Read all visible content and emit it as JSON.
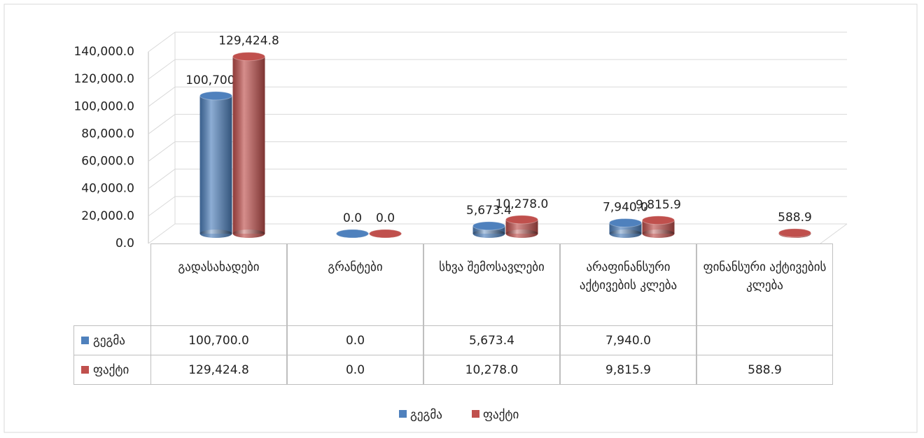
{
  "chart_data": {
    "type": "bar3d",
    "categories": [
      "გადასახადები",
      "გრანტები",
      "სხვა შემოსავლები",
      "არაფინანსური აქტივების კლება",
      "ფინანსური აქტივების კლება"
    ],
    "series": [
      {
        "name": "გეგმა",
        "color": "#4f81bd",
        "values": [
          100700,
          0,
          5673.4,
          7940,
          null
        ],
        "value_labels": [
          "100,700.0",
          "0.0",
          "5,673.4",
          "7,940.0",
          null
        ]
      },
      {
        "name": "ფაქტი",
        "color": "#c0504d",
        "values": [
          129424.8,
          0,
          10278,
          9815.9,
          588.9
        ],
        "value_labels": [
          "129,424.8",
          "0.0",
          "10,278.0",
          "9,815.9",
          "588.9"
        ]
      }
    ],
    "ylim": [
      0,
      140000
    ],
    "yticks": [
      {
        "value": 0,
        "label": "0.0"
      },
      {
        "value": 20000,
        "label": "20,000.0"
      },
      {
        "value": 40000,
        "label": "40,000.0"
      },
      {
        "value": 60000,
        "label": "60,000.0"
      },
      {
        "value": 80000,
        "label": "80,000.0"
      },
      {
        "value": 100000,
        "label": "100,000.0"
      },
      {
        "value": 120000,
        "label": "120,000.0"
      },
      {
        "value": 140000,
        "label": "140,000.0"
      }
    ],
    "grid": true,
    "legend": "bottom",
    "data_table": true
  }
}
